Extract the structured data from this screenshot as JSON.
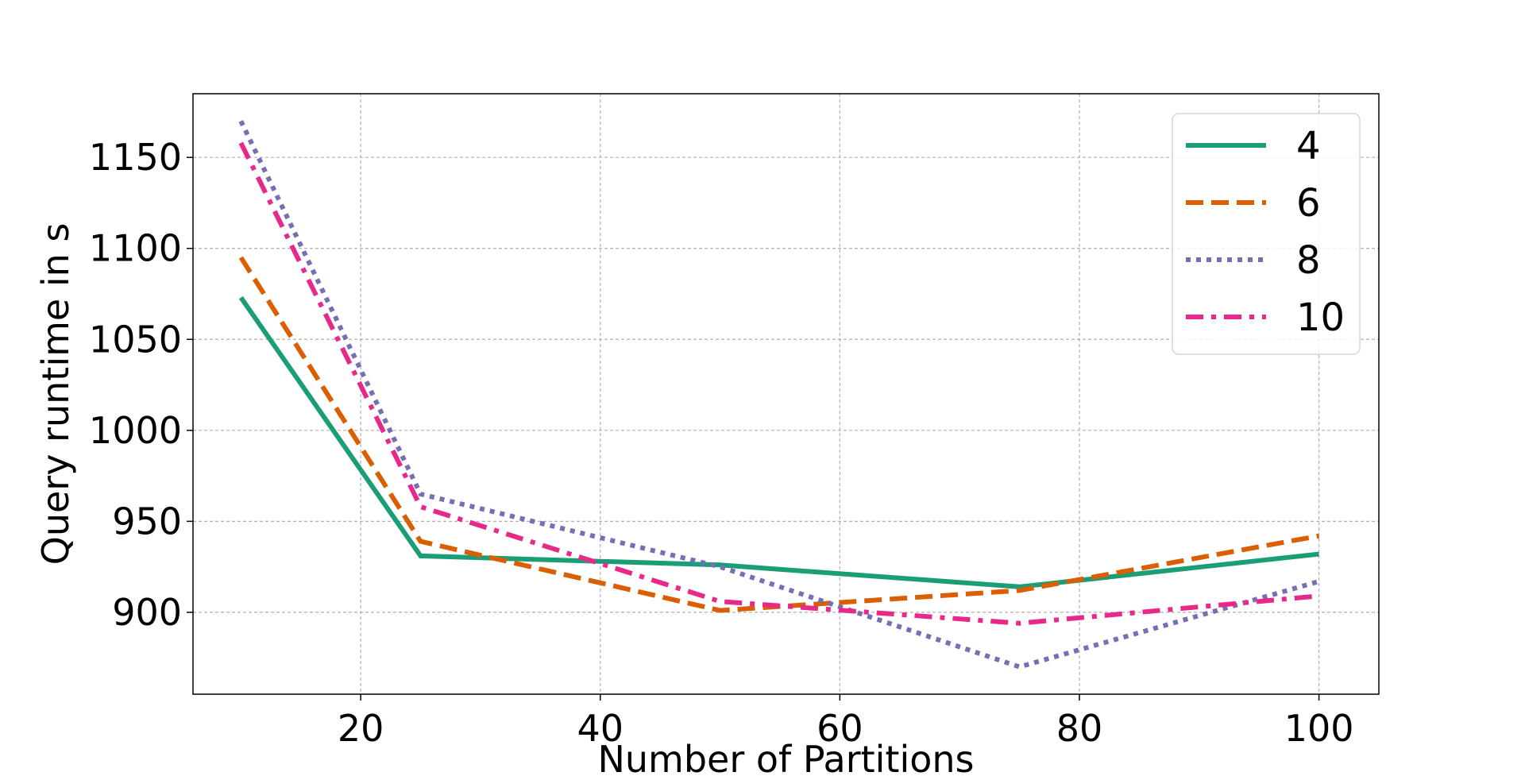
{
  "chart_data": {
    "type": "line",
    "title": "",
    "xlabel": "Number of Partitions",
    "ylabel": "Query runtime in s",
    "x": [
      10,
      25,
      50,
      75,
      100
    ],
    "xlim": [
      6,
      105
    ],
    "ylim": [
      855,
      1185
    ],
    "xticks": [
      20,
      40,
      60,
      80,
      100
    ],
    "yticks": [
      900,
      950,
      1000,
      1050,
      1100,
      1150
    ],
    "grid": true,
    "legend_position": "top-right",
    "series": [
      {
        "name": "4",
        "color": "#1b9e77",
        "style": "solid",
        "values": [
          1073,
          931,
          926,
          914,
          932
        ]
      },
      {
        "name": "6",
        "color": "#d95f02",
        "style": "dashed",
        "values": [
          1095,
          939,
          901,
          912,
          942
        ]
      },
      {
        "name": "8",
        "color": "#7570b3",
        "style": "dotted",
        "values": [
          1170,
          965,
          925,
          870,
          917
        ]
      },
      {
        "name": "10",
        "color": "#e7298a",
        "style": "dashdot",
        "values": [
          1158,
          958,
          906,
          894,
          909
        ]
      }
    ]
  }
}
